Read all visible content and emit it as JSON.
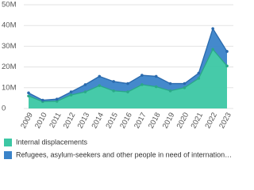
{
  "chart_data": {
    "type": "stacked-area",
    "categories": [
      "2009",
      "2010",
      "2011",
      "2012",
      "2013",
      "2014",
      "2015",
      "2016",
      "2017",
      "2018",
      "2019",
      "2020",
      "2021",
      "2022",
      "2023"
    ],
    "series": [
      {
        "name": "Internal displacements",
        "color": "#3cc7a4",
        "line_color": "#2aa888",
        "values": [
          6000000,
          3300000,
          3500000,
          6500000,
          8000000,
          11000000,
          8500000,
          8000000,
          11500000,
          10500000,
          8500000,
          10000000,
          14500000,
          28500000,
          20500000
        ]
      },
      {
        "name": "Refugees, asylum-seekers and other people in need of internation…",
        "color": "#3a83c9",
        "line_color": "#2a6aad",
        "values": [
          1500000,
          700000,
          1000000,
          1500000,
          3500000,
          4500000,
          4500000,
          4000000,
          4500000,
          5000000,
          3500000,
          2000000,
          2500000,
          10000000,
          7000000
        ]
      }
    ],
    "ylim": [
      0,
      50000000
    ],
    "yticks": [
      {
        "value": 0,
        "label": "0"
      },
      {
        "value": 10000000,
        "label": "10M"
      },
      {
        "value": 20000000,
        "label": "20M"
      },
      {
        "value": 30000000,
        "label": "30M"
      },
      {
        "value": 40000000,
        "label": "40M"
      },
      {
        "value": 50000000,
        "label": "50M"
      }
    ],
    "grid": true
  }
}
